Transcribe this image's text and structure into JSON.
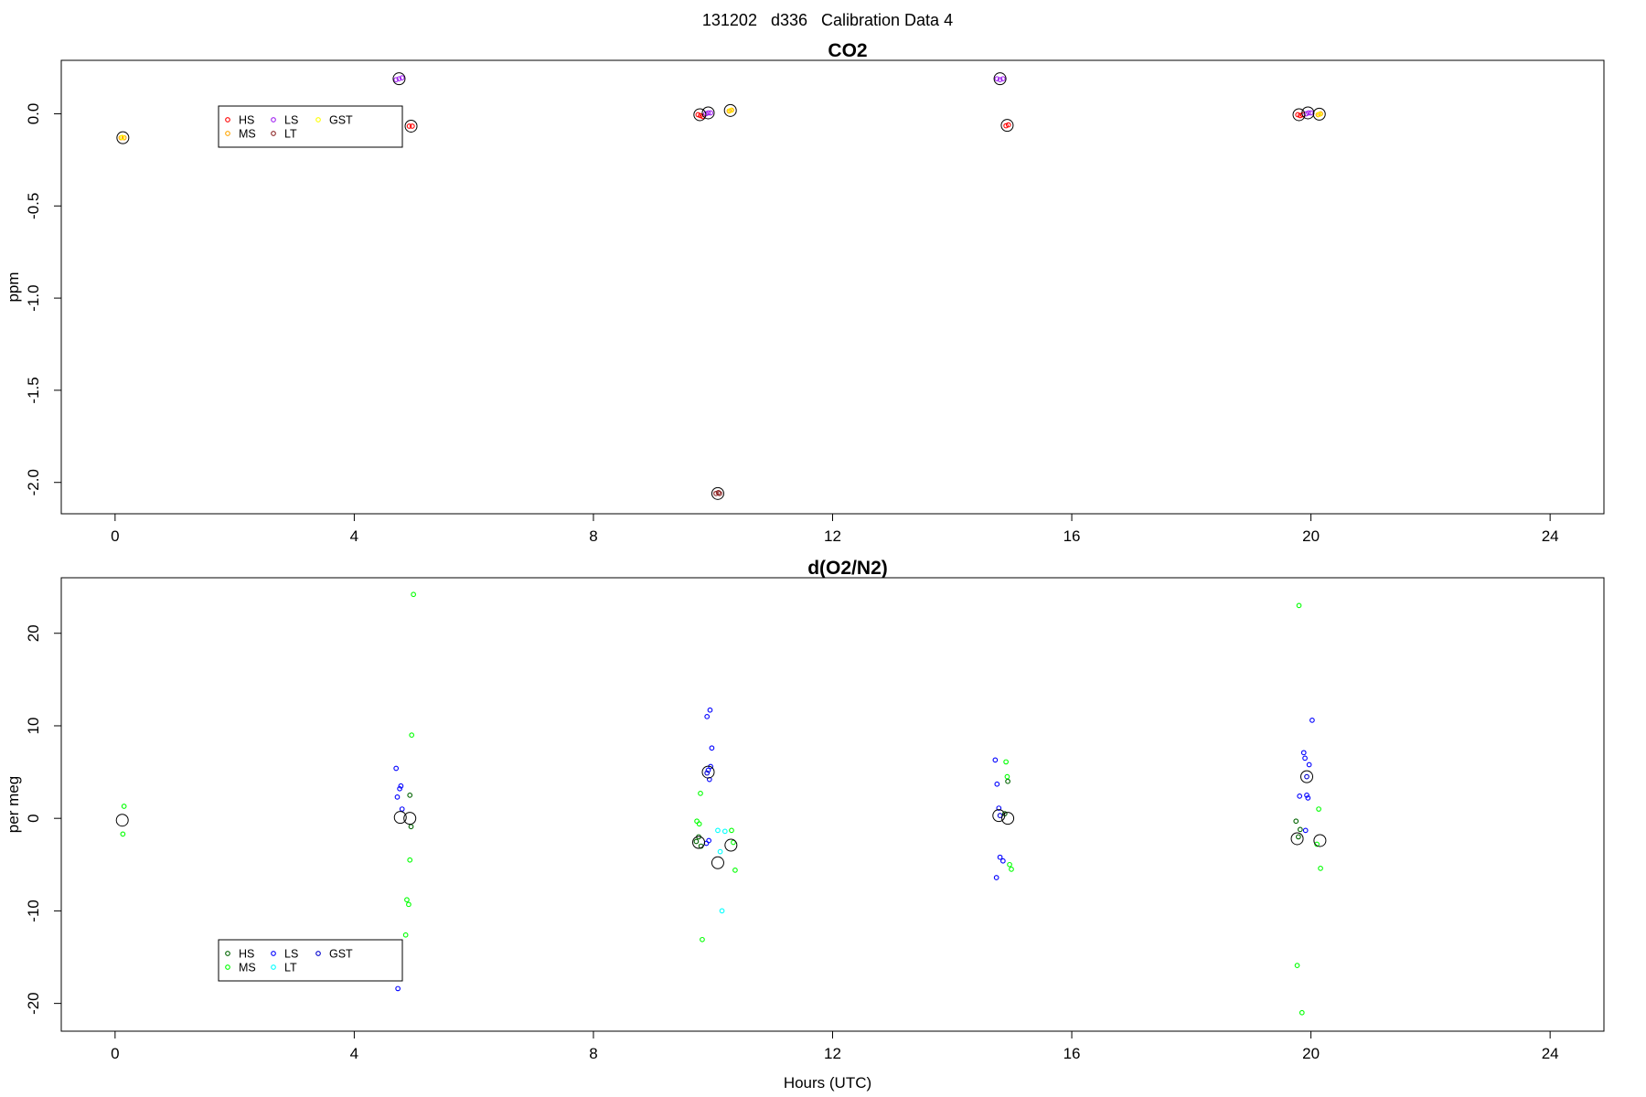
{
  "figure": {
    "suptitle": "131202   d336   Calibration Data 4",
    "xlabel": "Hours (UTC)"
  },
  "chart_data": [
    {
      "type": "scatter",
      "title": "CO2",
      "ylabel": "ppm",
      "xlabel": "",
      "xlim": [
        -0.9,
        24.9
      ],
      "ylim": [
        -2.17,
        0.29
      ],
      "xticks": [
        0,
        4,
        8,
        12,
        16,
        20,
        24
      ],
      "yticks": [
        0.0,
        -0.5,
        -1.0,
        -1.5,
        -2.0
      ],
      "ytick_labels": [
        "0.0",
        "-0.5",
        "-1.0",
        "-1.5",
        "-2.0"
      ],
      "grid": false,
      "legend": {
        "position": "top-left",
        "columns": 3
      },
      "series": [
        {
          "name": "HS",
          "color": "#ff0000",
          "points": [
            [
              4.92,
              -0.067
            ],
            [
              4.97,
              -0.067
            ],
            [
              9.75,
              -0.005
            ],
            [
              9.79,
              -0.01
            ],
            [
              9.83,
              -0.015
            ],
            [
              14.9,
              -0.065
            ],
            [
              14.94,
              -0.06
            ],
            [
              19.78,
              -0.005
            ],
            [
              19.82,
              -0.01
            ],
            [
              19.86,
              -0.005
            ]
          ]
        },
        {
          "name": "MS",
          "color": "#ffa500",
          "points": [
            [
              0.1,
              -0.13
            ],
            [
              0.15,
              -0.13
            ],
            [
              10.27,
              0.015
            ],
            [
              10.31,
              0.02
            ],
            [
              20.12,
              -0.005
            ],
            [
              20.16,
              0.0
            ]
          ]
        },
        {
          "name": "LS",
          "color": "#a020f0",
          "points": [
            [
              4.7,
              0.185
            ],
            [
              4.75,
              0.19
            ],
            [
              4.8,
              0.195
            ],
            [
              9.88,
              0.0
            ],
            [
              9.92,
              0.005
            ],
            [
              9.96,
              0.005
            ],
            [
              14.75,
              0.19
            ],
            [
              14.8,
              0.185
            ],
            [
              14.85,
              0.19
            ],
            [
              19.92,
              0.0
            ],
            [
              19.96,
              0.005
            ],
            [
              20.0,
              0.005
            ]
          ]
        },
        {
          "name": "LT",
          "color": "#8b2323",
          "points": [
            [
              10.05,
              -2.06
            ],
            [
              10.09,
              -2.055
            ],
            [
              10.11,
              -2.06
            ]
          ]
        },
        {
          "name": "GST",
          "color": "#ffff00",
          "points": [
            [
              0.12,
              -0.128
            ],
            [
              10.29,
              0.018
            ],
            [
              20.14,
              -0.003
            ]
          ]
        }
      ],
      "means": [
        [
          0.13,
          -0.13
        ],
        [
          4.75,
          0.19
        ],
        [
          4.95,
          -0.067
        ],
        [
          9.78,
          -0.005
        ],
        [
          9.92,
          0.005
        ],
        [
          10.29,
          0.018
        ],
        [
          10.08,
          -2.06
        ],
        [
          14.8,
          0.19
        ],
        [
          14.92,
          -0.063
        ],
        [
          19.8,
          -0.005
        ],
        [
          19.95,
          0.005
        ],
        [
          20.14,
          -0.002
        ]
      ]
    },
    {
      "type": "scatter",
      "title": "d(O2/N2)",
      "ylabel": "per meg",
      "xlabel": "Hours (UTC)",
      "xlim": [
        -0.9,
        24.9
      ],
      "ylim": [
        -23,
        26
      ],
      "xticks": [
        0,
        4,
        8,
        12,
        16,
        20,
        24
      ],
      "yticks": [
        20,
        10,
        0,
        -10,
        -20
      ],
      "ytick_labels": [
        "20",
        "10",
        "0",
        "-10",
        "-20"
      ],
      "grid": false,
      "legend": {
        "position": "bottom-left",
        "columns": 3
      },
      "series": [
        {
          "name": "HS",
          "color": "#006400",
          "points": [
            [
              9.72,
              -2.5
            ],
            [
              9.76,
              -2.0
            ],
            [
              9.8,
              -3.0
            ],
            [
              19.75,
              -0.3
            ],
            [
              19.79,
              -2.0
            ],
            [
              19.82,
              -1.2
            ],
            [
              4.93,
              2.5
            ],
            [
              4.95,
              -0.9
            ],
            [
              14.88,
              0.5
            ],
            [
              14.93,
              4.0
            ]
          ]
        },
        {
          "name": "MS",
          "color": "#00ff00",
          "points": [
            [
              0.15,
              1.3
            ],
            [
              0.13,
              -1.7
            ],
            [
              4.86,
              -12.6
            ],
            [
              4.88,
              -8.8
            ],
            [
              4.91,
              -9.3
            ],
            [
              4.93,
              -4.5
            ],
            [
              4.96,
              9.0
            ],
            [
              4.99,
              24.2
            ],
            [
              9.73,
              -0.3
            ],
            [
              9.77,
              -0.6
            ],
            [
              9.79,
              2.7
            ],
            [
              9.82,
              -13.1
            ],
            [
              10.31,
              -1.3
            ],
            [
              10.34,
              -2.6
            ],
            [
              10.37,
              -5.6
            ],
            [
              14.9,
              6.1
            ],
            [
              14.92,
              4.5
            ],
            [
              14.96,
              -5.0
            ],
            [
              14.99,
              -5.5
            ],
            [
              19.8,
              23.0
            ],
            [
              19.77,
              -15.9
            ],
            [
              19.85,
              -21.0
            ],
            [
              20.1,
              -2.8
            ],
            [
              20.13,
              1.0
            ],
            [
              20.16,
              -5.4
            ]
          ]
        },
        {
          "name": "LS",
          "color": "#0000ff",
          "points": [
            [
              4.7,
              5.4
            ],
            [
              4.72,
              2.3
            ],
            [
              4.76,
              3.2
            ],
            [
              4.78,
              3.5
            ],
            [
              4.8,
              1.0
            ],
            [
              4.73,
              -18.4
            ],
            [
              9.9,
              11.0
            ],
            [
              9.95,
              11.7
            ],
            [
              9.98,
              7.6
            ],
            [
              9.92,
              5.2
            ],
            [
              9.94,
              4.2
            ],
            [
              9.96,
              5.6
            ],
            [
              9.93,
              -2.4
            ],
            [
              9.89,
              -2.7
            ],
            [
              14.72,
              6.3
            ],
            [
              14.75,
              3.7
            ],
            [
              14.78,
              1.1
            ],
            [
              14.8,
              -4.2
            ],
            [
              14.85,
              -4.6
            ],
            [
              14.74,
              -6.4
            ],
            [
              19.88,
              7.1
            ],
            [
              19.9,
              6.5
            ],
            [
              19.93,
              2.5
            ],
            [
              19.95,
              2.2
            ],
            [
              20.02,
              10.6
            ],
            [
              19.97,
              5.8
            ],
            [
              19.81,
              2.4
            ],
            [
              19.91,
              -1.3
            ]
          ]
        },
        {
          "name": "LT",
          "color": "#00ffff",
          "points": [
            [
              10.08,
              -1.3
            ],
            [
              10.12,
              -3.6
            ],
            [
              10.15,
              -10.0
            ],
            [
              10.2,
              -1.4
            ]
          ]
        },
        {
          "name": "GST",
          "color": "#0000cd",
          "points": [
            [
              9.9,
              4.9
            ],
            [
              14.8,
              0.3
            ],
            [
              19.93,
              4.5
            ]
          ]
        }
      ],
      "means": [
        [
          0.12,
          -0.2
        ],
        [
          4.77,
          0.1
        ],
        [
          4.93,
          0.0
        ],
        [
          9.76,
          -2.6
        ],
        [
          9.92,
          5.0
        ],
        [
          10.08,
          -4.8
        ],
        [
          10.3,
          -2.9
        ],
        [
          14.78,
          0.3
        ],
        [
          14.93,
          0.0
        ],
        [
          19.77,
          -2.2
        ],
        [
          19.93,
          4.5
        ],
        [
          20.15,
          -2.4
        ]
      ]
    }
  ]
}
